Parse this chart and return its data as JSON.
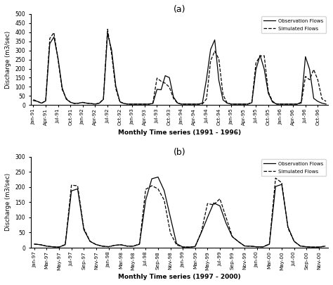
{
  "title_a": "(a)",
  "title_b": "(b)",
  "ylabel": "Discharge (m3/sec)",
  "xlabel_a": "Monthly Time series (1991 - 1996)",
  "xlabel_b": "Monthly Time series (1997 - 2000)",
  "legend_obs": "Observation Flows",
  "legend_sim": "Simulated Flows",
  "ylim_a": [
    0,
    500
  ],
  "ylim_b": [
    0,
    300
  ],
  "yticks_a": [
    0,
    50,
    100,
    150,
    200,
    250,
    300,
    350,
    400,
    450,
    500
  ],
  "yticks_b": [
    0,
    50,
    100,
    150,
    200,
    250,
    300
  ],
  "xticks_a": [
    "Jan-91",
    "Apr-91",
    "Jul-91",
    "Oct-91",
    "Jan-92",
    "Apr-92",
    "Jul-92",
    "Oct-92",
    "Jan-93",
    "Apr-93",
    "Jul-93",
    "Oct-93",
    "Jan-94",
    "Apr-94",
    "Jul-94",
    "Oct-94",
    "Jan-95",
    "Apr-95",
    "Jul-95",
    "Oct-95",
    "Jan-96",
    "Apr-96",
    "Jul-96",
    "Oct-96"
  ],
  "xticks_b": [
    "Jan-97",
    "Mar-97",
    "May-97",
    "Jul-97",
    "Sep-97",
    "Nov-97",
    "Jan-98",
    "Mar-98",
    "May-98",
    "Jul-98",
    "Sep-98",
    "Nov-98",
    "Jan-99",
    "Mar-99",
    "May-99",
    "Jul-99",
    "Sep-99",
    "Nov-99",
    "Jan-00",
    "Mar-00",
    "May-00",
    "Jul-00",
    "Sep-00",
    "Nov-00"
  ],
  "bg_color": "#ffffff",
  "obs_a_monthly": [
    25,
    20,
    10,
    8,
    350,
    380,
    260,
    90,
    30,
    15,
    8,
    10,
    15,
    10,
    8,
    5,
    10,
    15,
    415,
    305,
    100,
    15,
    8,
    5,
    5,
    5,
    5,
    5,
    5,
    5,
    90,
    80,
    165,
    155,
    40,
    10,
    5,
    5,
    5,
    5,
    5,
    5,
    140,
    310,
    370,
    130,
    25,
    10,
    5,
    5,
    5,
    5,
    5,
    5,
    200,
    280,
    200,
    60,
    15,
    5,
    5,
    5,
    5,
    5,
    5,
    5,
    280,
    200,
    30,
    20,
    10,
    5
  ],
  "sim_a_monthly": [
    30,
    20,
    10,
    8,
    380,
    405,
    250,
    80,
    35,
    15,
    8,
    10,
    15,
    10,
    8,
    5,
    10,
    15,
    440,
    280,
    85,
    15,
    8,
    5,
    5,
    5,
    5,
    5,
    5,
    5,
    155,
    130,
    120,
    100,
    35,
    8,
    5,
    5,
    5,
    5,
    5,
    5,
    25,
    250,
    300,
    260,
    50,
    10,
    5,
    5,
    5,
    5,
    5,
    5,
    240,
    270,
    280,
    65,
    20,
    5,
    5,
    5,
    5,
    5,
    5,
    5,
    165,
    135,
    200,
    140,
    30,
    20
  ],
  "obs_b_monthly": [
    12,
    10,
    5,
    3,
    2,
    2,
    195,
    200,
    55,
    20,
    10,
    5,
    3,
    8,
    10,
    5,
    5,
    5,
    160,
    230,
    235,
    190,
    100,
    10,
    2,
    2,
    2,
    50,
    100,
    150,
    140,
    80,
    35,
    20,
    5,
    5,
    3,
    3,
    3,
    210,
    215,
    65,
    20,
    5,
    3,
    2,
    2,
    5
  ],
  "sim_b_monthly": [
    12,
    10,
    5,
    3,
    2,
    2,
    215,
    210,
    60,
    20,
    10,
    5,
    3,
    8,
    10,
    5,
    5,
    5,
    200,
    205,
    195,
    160,
    45,
    8,
    2,
    2,
    2,
    50,
    150,
    140,
    165,
    100,
    35,
    20,
    5,
    5,
    3,
    3,
    3,
    240,
    220,
    60,
    20,
    5,
    3,
    2,
    2,
    5
  ]
}
